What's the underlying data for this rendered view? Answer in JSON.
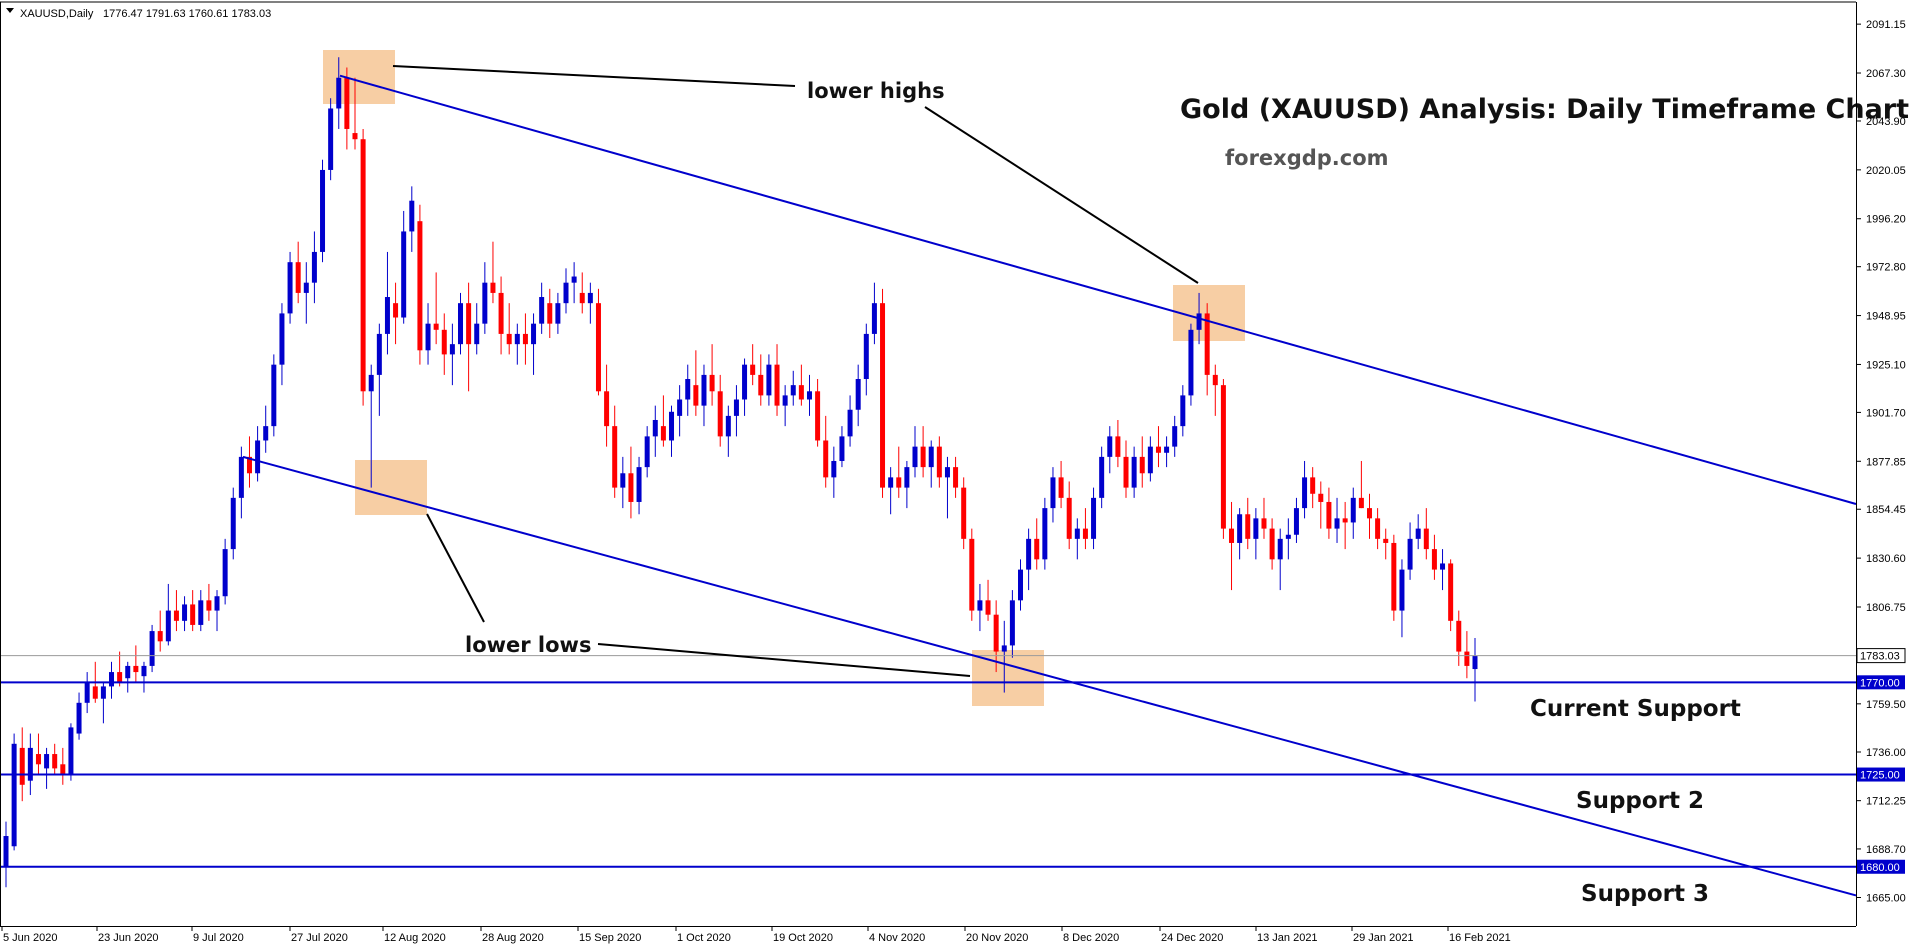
{
  "chart_data": {
    "type": "candlestick",
    "symbol_label": "XAUUSD,Daily",
    "ohlc_label": "1776.47 1791.63 1760.61 1783.03",
    "title": "Gold (XAUUSD) Analysis: Daily Timeframe Chart",
    "site": "forexgdp.com",
    "ylim": [
      1655,
      2100
    ],
    "y_ticks": [
      "2091.15",
      "2067.30",
      "2043.90",
      "2020.05",
      "1996.20",
      "1972.80",
      "1948.95",
      "1925.10",
      "1901.70",
      "1877.85",
      "1854.45",
      "1830.60",
      "1806.75",
      "1783.03",
      "1770.00",
      "1759.50",
      "1736.00",
      "1725.00",
      "1712.25",
      "1688.70",
      "1680.00",
      "1665.00"
    ],
    "x_ticks": [
      "5 Jun 2020",
      "23 Jun 2020",
      "9 Jul 2020",
      "27 Jul 2020",
      "12 Aug 2020",
      "28 Aug 2020",
      "15 Sep 2020",
      "1 Oct 2020",
      "19 Oct 2020",
      "4 Nov 2020",
      "20 Nov 2020",
      "8 Dec 2020",
      "24 Dec 2020",
      "13 Jan 2021",
      "29 Jan 2021",
      "16 Feb 2021"
    ],
    "candles": [
      [
        1680,
        1702,
        1670,
        1695
      ],
      [
        1690,
        1745,
        1688,
        1740
      ],
      [
        1738,
        1748,
        1712,
        1720
      ],
      [
        1722,
        1745,
        1715,
        1738
      ],
      [
        1735,
        1745,
        1725,
        1730
      ],
      [
        1728,
        1738,
        1718,
        1735
      ],
      [
        1735,
        1740,
        1725,
        1728
      ],
      [
        1730,
        1738,
        1720,
        1725
      ],
      [
        1725,
        1750,
        1722,
        1748
      ],
      [
        1745,
        1765,
        1742,
        1760
      ],
      [
        1760,
        1775,
        1755,
        1770
      ],
      [
        1768,
        1780,
        1760,
        1762
      ],
      [
        1762,
        1770,
        1750,
        1768
      ],
      [
        1768,
        1780,
        1762,
        1775
      ],
      [
        1775,
        1785,
        1768,
        1770
      ],
      [
        1772,
        1780,
        1765,
        1778
      ],
      [
        1778,
        1788,
        1770,
        1775
      ],
      [
        1773,
        1780,
        1765,
        1778
      ],
      [
        1778,
        1798,
        1775,
        1795
      ],
      [
        1795,
        1805,
        1785,
        1790
      ],
      [
        1790,
        1818,
        1788,
        1805
      ],
      [
        1805,
        1815,
        1795,
        1800
      ],
      [
        1800,
        1812,
        1795,
        1808
      ],
      [
        1808,
        1815,
        1795,
        1798
      ],
      [
        1798,
        1815,
        1795,
        1810
      ],
      [
        1810,
        1818,
        1800,
        1805
      ],
      [
        1805,
        1815,
        1795,
        1812
      ],
      [
        1812,
        1840,
        1808,
        1835
      ],
      [
        1835,
        1865,
        1830,
        1860
      ],
      [
        1860,
        1885,
        1850,
        1880
      ],
      [
        1880,
        1890,
        1865,
        1872
      ],
      [
        1872,
        1895,
        1868,
        1888
      ],
      [
        1888,
        1905,
        1882,
        1895
      ],
      [
        1895,
        1930,
        1890,
        1925
      ],
      [
        1925,
        1955,
        1915,
        1950
      ],
      [
        1950,
        1980,
        1945,
        1975
      ],
      [
        1975,
        1985,
        1955,
        1960
      ],
      [
        1960,
        1975,
        1945,
        1965
      ],
      [
        1965,
        1990,
        1955,
        1980
      ],
      [
        1980,
        2025,
        1975,
        2020
      ],
      [
        2020,
        2055,
        2015,
        2050
      ],
      [
        2050,
        2075,
        2040,
        2065
      ],
      [
        2065,
        2070,
        2030,
        2040
      ],
      [
        2038,
        2065,
        2030,
        2035
      ],
      [
        2035,
        2040,
        1905,
        1912
      ],
      [
        1912,
        1925,
        1865,
        1920
      ],
      [
        1920,
        1945,
        1900,
        1940
      ],
      [
        1940,
        1980,
        1930,
        1958
      ],
      [
        1955,
        1965,
        1935,
        1948
      ],
      [
        1948,
        2000,
        1945,
        1990
      ],
      [
        1990,
        2012,
        1980,
        2005
      ],
      [
        1995,
        2003,
        1925,
        1932
      ],
      [
        1932,
        1955,
        1925,
        1945
      ],
      [
        1945,
        1970,
        1935,
        1942
      ],
      [
        1942,
        1950,
        1920,
        1930
      ],
      [
        1930,
        1945,
        1915,
        1935
      ],
      [
        1935,
        1960,
        1930,
        1955
      ],
      [
        1955,
        1965,
        1912,
        1935
      ],
      [
        1935,
        1955,
        1930,
        1945
      ],
      [
        1945,
        1975,
        1940,
        1965
      ],
      [
        1965,
        1985,
        1955,
        1960
      ],
      [
        1960,
        1968,
        1930,
        1940
      ],
      [
        1940,
        1955,
        1930,
        1935
      ],
      [
        1935,
        1945,
        1925,
        1940
      ],
      [
        1940,
        1950,
        1925,
        1935
      ],
      [
        1935,
        1950,
        1920,
        1945
      ],
      [
        1945,
        1965,
        1940,
        1958
      ],
      [
        1955,
        1962,
        1938,
        1945
      ],
      [
        1945,
        1960,
        1940,
        1955
      ],
      [
        1955,
        1972,
        1950,
        1965
      ],
      [
        1965,
        1975,
        1955,
        1968
      ],
      [
        1960,
        1970,
        1950,
        1955
      ],
      [
        1955,
        1965,
        1945,
        1960
      ],
      [
        1955,
        1962,
        1910,
        1912
      ],
      [
        1912,
        1925,
        1885,
        1895
      ],
      [
        1895,
        1905,
        1860,
        1865
      ],
      [
        1865,
        1880,
        1855,
        1872
      ],
      [
        1872,
        1885,
        1850,
        1858
      ],
      [
        1858,
        1880,
        1852,
        1875
      ],
      [
        1875,
        1895,
        1870,
        1890
      ],
      [
        1890,
        1905,
        1880,
        1898
      ],
      [
        1895,
        1910,
        1885,
        1888
      ],
      [
        1888,
        1905,
        1880,
        1902
      ],
      [
        1900,
        1915,
        1890,
        1908
      ],
      [
        1908,
        1925,
        1900,
        1918
      ],
      [
        1915,
        1932,
        1900,
        1905
      ],
      [
        1905,
        1925,
        1895,
        1920
      ],
      [
        1920,
        1935,
        1905,
        1912
      ],
      [
        1912,
        1920,
        1885,
        1890
      ],
      [
        1890,
        1905,
        1880,
        1900
      ],
      [
        1900,
        1915,
        1890,
        1908
      ],
      [
        1908,
        1928,
        1900,
        1925
      ],
      [
        1925,
        1935,
        1915,
        1920
      ],
      [
        1920,
        1930,
        1905,
        1910
      ],
      [
        1910,
        1930,
        1905,
        1925
      ],
      [
        1925,
        1935,
        1900,
        1905
      ],
      [
        1905,
        1915,
        1895,
        1910
      ],
      [
        1910,
        1922,
        1905,
        1915
      ],
      [
        1915,
        1925,
        1905,
        1908
      ],
      [
        1908,
        1920,
        1900,
        1912
      ],
      [
        1912,
        1918,
        1885,
        1888
      ],
      [
        1888,
        1900,
        1865,
        1870
      ],
      [
        1870,
        1885,
        1860,
        1878
      ],
      [
        1878,
        1895,
        1875,
        1890
      ],
      [
        1890,
        1910,
        1885,
        1903
      ],
      [
        1903,
        1925,
        1895,
        1918
      ],
      [
        1918,
        1945,
        1910,
        1940
      ],
      [
        1940,
        1965,
        1935,
        1955
      ],
      [
        1955,
        1962,
        1860,
        1865
      ],
      [
        1865,
        1875,
        1852,
        1870
      ],
      [
        1870,
        1885,
        1860,
        1865
      ],
      [
        1865,
        1878,
        1855,
        1875
      ],
      [
        1875,
        1895,
        1870,
        1885
      ],
      [
        1885,
        1895,
        1870,
        1875
      ],
      [
        1875,
        1888,
        1865,
        1885
      ],
      [
        1885,
        1890,
        1865,
        1870
      ],
      [
        1870,
        1880,
        1850,
        1875
      ],
      [
        1875,
        1880,
        1860,
        1865
      ],
      [
        1865,
        1870,
        1835,
        1840
      ],
      [
        1840,
        1845,
        1800,
        1805
      ],
      [
        1805,
        1818,
        1795,
        1810
      ],
      [
        1810,
        1820,
        1800,
        1803
      ],
      [
        1803,
        1810,
        1775,
        1785
      ],
      [
        1785,
        1800,
        1765,
        1788
      ],
      [
        1788,
        1815,
        1782,
        1810
      ],
      [
        1810,
        1830,
        1805,
        1825
      ],
      [
        1825,
        1845,
        1815,
        1840
      ],
      [
        1840,
        1850,
        1825,
        1830
      ],
      [
        1830,
        1860,
        1825,
        1855
      ],
      [
        1855,
        1875,
        1848,
        1870
      ],
      [
        1870,
        1878,
        1855,
        1860
      ],
      [
        1860,
        1868,
        1835,
        1840
      ],
      [
        1840,
        1850,
        1830,
        1845
      ],
      [
        1845,
        1855,
        1835,
        1840
      ],
      [
        1840,
        1865,
        1835,
        1860
      ],
      [
        1860,
        1885,
        1855,
        1880
      ],
      [
        1880,
        1895,
        1872,
        1890
      ],
      [
        1890,
        1898,
        1875,
        1880
      ],
      [
        1880,
        1888,
        1860,
        1865
      ],
      [
        1865,
        1885,
        1860,
        1880
      ],
      [
        1880,
        1890,
        1865,
        1872
      ],
      [
        1872,
        1890,
        1868,
        1885
      ],
      [
        1885,
        1895,
        1875,
        1882
      ],
      [
        1882,
        1890,
        1875,
        1885
      ],
      [
        1885,
        1900,
        1880,
        1895
      ],
      [
        1895,
        1915,
        1890,
        1910
      ],
      [
        1910,
        1945,
        1905,
        1942
      ],
      [
        1942,
        1960,
        1935,
        1950
      ],
      [
        1950,
        1955,
        1910,
        1920
      ],
      [
        1920,
        1925,
        1900,
        1915
      ],
      [
        1915,
        1918,
        1840,
        1845
      ],
      [
        1845,
        1858,
        1815,
        1838
      ],
      [
        1838,
        1855,
        1830,
        1852
      ],
      [
        1852,
        1860,
        1835,
        1840
      ],
      [
        1840,
        1855,
        1830,
        1850
      ],
      [
        1850,
        1860,
        1840,
        1845
      ],
      [
        1845,
        1850,
        1825,
        1830
      ],
      [
        1830,
        1845,
        1815,
        1840
      ],
      [
        1840,
        1850,
        1830,
        1842
      ],
      [
        1842,
        1860,
        1838,
        1855
      ],
      [
        1855,
        1878,
        1850,
        1870
      ],
      [
        1870,
        1875,
        1855,
        1862
      ],
      [
        1862,
        1868,
        1845,
        1858
      ],
      [
        1858,
        1865,
        1840,
        1845
      ],
      [
        1845,
        1860,
        1838,
        1850
      ],
      [
        1850,
        1858,
        1835,
        1848
      ],
      [
        1848,
        1865,
        1840,
        1860
      ],
      [
        1860,
        1878,
        1855,
        1855
      ],
      [
        1855,
        1862,
        1840,
        1850
      ],
      [
        1850,
        1855,
        1835,
        1840
      ],
      [
        1840,
        1845,
        1830,
        1838
      ],
      [
        1838,
        1842,
        1800,
        1805
      ],
      [
        1805,
        1830,
        1792,
        1825
      ],
      [
        1825,
        1848,
        1820,
        1840
      ],
      [
        1840,
        1852,
        1835,
        1845
      ],
      [
        1845,
        1855,
        1830,
        1835
      ],
      [
        1835,
        1842,
        1820,
        1825
      ],
      [
        1825,
        1835,
        1815,
        1828
      ],
      [
        1828,
        1830,
        1795,
        1800
      ],
      [
        1800,
        1805,
        1778,
        1785
      ],
      [
        1785,
        1795,
        1772,
        1778
      ],
      [
        1776.47,
        1791.63,
        1760.61,
        1783.03
      ]
    ],
    "trendlines": [
      {
        "name": "upper",
        "from": [
          0,
          2066
        ],
        "to": [
          -1,
          1857
        ]
      },
      {
        "name": "lower",
        "from": [
          0,
          1880
        ],
        "to": [
          -1,
          1666
        ]
      }
    ],
    "support_levels": [
      {
        "value": 1770.0,
        "label": "Current Support",
        "badge": "1770.00"
      },
      {
        "value": 1725.0,
        "label": "Support 2",
        "badge": "1725.00"
      },
      {
        "value": 1680.0,
        "label": "Support 3",
        "badge": "1680.00"
      }
    ],
    "current_price": "1783.03",
    "annotations": {
      "upper": "lower highs",
      "lower": "lower lows"
    },
    "colors": {
      "bull": "#0000cc",
      "bear": "#ff0000",
      "line": "#0000cc",
      "highlight": "#f5c28d",
      "grid": "#808080"
    }
  }
}
